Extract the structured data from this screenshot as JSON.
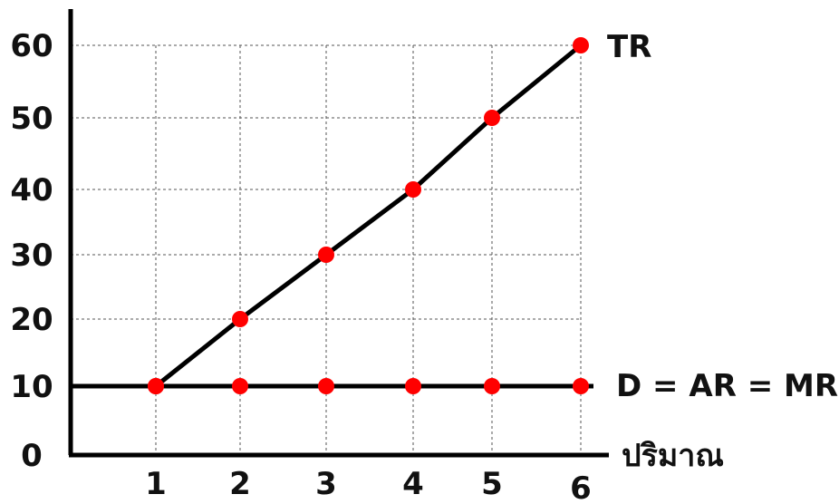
{
  "chart_data": {
    "type": "line",
    "xlabel": "ปริมาณ",
    "ylabel": "",
    "xlim": [
      0,
      6
    ],
    "ylim": [
      0,
      60
    ],
    "x_ticks": [
      1,
      2,
      3,
      4,
      5,
      6
    ],
    "y_ticks": [
      0,
      10,
      20,
      30,
      40,
      50,
      60
    ],
    "grid": true,
    "series": [
      {
        "name": "TR",
        "x": [
          1,
          2,
          3,
          4,
          5,
          6
        ],
        "y": [
          10,
          20,
          30,
          40,
          50,
          60
        ]
      },
      {
        "name": "D = AR = MR",
        "x": [
          1,
          2,
          3,
          4,
          5,
          6
        ],
        "y": [
          10,
          10,
          10,
          10,
          10,
          10
        ]
      }
    ],
    "colors": {
      "line": "#000000",
      "marker": "#ff0000",
      "grid": "#555555",
      "axis": "#000000"
    }
  }
}
